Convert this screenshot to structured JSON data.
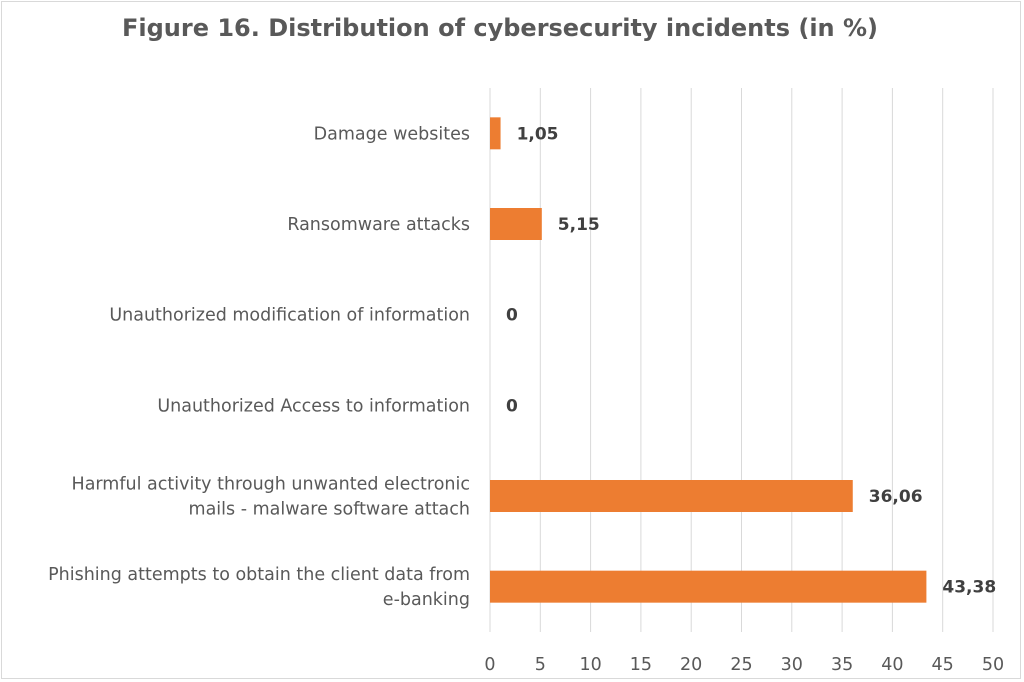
{
  "chart_data": {
    "type": "bar",
    "orientation": "horizontal",
    "title": "Figure 16. Distribution of cybersecurity incidents (in %)",
    "categories": [
      [
        "Damage websites"
      ],
      [
        "Ransomware attacks"
      ],
      [
        "Unauthorized modification of information"
      ],
      [
        "Unauthorized Access to information"
      ],
      [
        "Harmful activity through unwanted electronic",
        "mails - malware software attach"
      ],
      [
        "Phishing attempts to obtain the client data from",
        "e-banking"
      ]
    ],
    "values": [
      1.05,
      5.15,
      0,
      0,
      36.06,
      43.38
    ],
    "data_labels": [
      "1,05",
      "5,15",
      "0",
      "0",
      "36,06",
      "43,38"
    ],
    "xlim": [
      0,
      50
    ],
    "xticks": [
      0,
      5,
      10,
      15,
      20,
      25,
      30,
      35,
      40,
      45,
      50
    ],
    "grid": "vertical",
    "legend": "none",
    "bar_color": "#ed7d31",
    "grid_color": "#d9d9d9"
  }
}
